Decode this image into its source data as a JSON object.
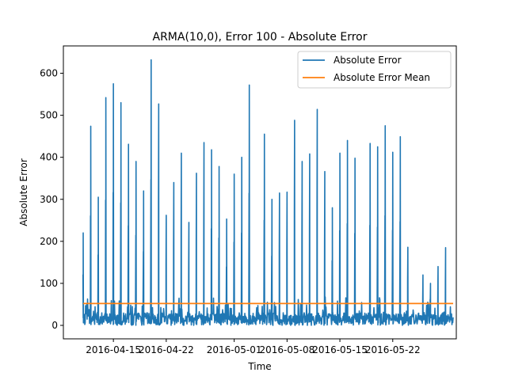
{
  "chart_data": {
    "type": "line",
    "title": "ARMA(10,0), Error 100 - Absolute Error",
    "xlabel": "Time",
    "ylabel": "Absolute Error",
    "x_range": [
      "2016-04-08T09:00",
      "2016-05-30T10:00"
    ],
    "ylim": [
      -32,
      665
    ],
    "x_ticks": [
      {
        "date": "2016-04-15",
        "label": "2016-04-15"
      },
      {
        "date": "2016-04-22",
        "label": "2016-04-22"
      },
      {
        "date": "2016-05-01",
        "label": "2016-05-01"
      },
      {
        "date": "2016-05-08",
        "label": "2016-05-08"
      },
      {
        "date": "2016-05-15",
        "label": "2016-05-15"
      },
      {
        "date": "2016-05-22",
        "label": "2016-05-22"
      }
    ],
    "y_ticks": [
      0,
      100,
      200,
      300,
      400,
      500,
      600
    ],
    "grid": false,
    "legend_position": "top-right",
    "series": [
      {
        "name": "Absolute Error",
        "color": "#1f77b4",
        "x": [
          "2016-04-11",
          "2016-04-12",
          "2016-04-13",
          "2016-04-13",
          "2016-04-14",
          "2016-04-15",
          "2016-04-16",
          "2016-04-16",
          "2016-04-17",
          "2016-04-17",
          "2016-04-18",
          "2016-04-19",
          "2016-04-20",
          "2016-04-21",
          "2016-04-22",
          "2016-04-23",
          "2016-04-24",
          "2016-04-25",
          "2016-04-26",
          "2016-04-27",
          "2016-04-28",
          "2016-04-29",
          "2016-04-30",
          "2016-05-01",
          "2016-05-02",
          "2016-05-03",
          "2016-05-05",
          "2016-05-06",
          "2016-05-07",
          "2016-05-08",
          "2016-05-09",
          "2016-05-10",
          "2016-05-11",
          "2016-05-12",
          "2016-05-13",
          "2016-05-14",
          "2016-05-15",
          "2016-05-16",
          "2016-05-17",
          "2016-05-19",
          "2016-05-20",
          "2016-05-21",
          "2016-05-22",
          "2016-05-23",
          "2016-05-24",
          "2016-05-26",
          "2016-05-27",
          "2016-05-28",
          "2016-05-29"
        ],
        "y": [
          220,
          474,
          305,
          278,
          542,
          575,
          478,
          530,
          431,
          412,
          390,
          320,
          632,
          527,
          262,
          340,
          410,
          245,
          362,
          435,
          418,
          378,
          253,
          360,
          400,
          572,
          455,
          300,
          315,
          317,
          488,
          390,
          408,
          514,
          366,
          280,
          410,
          440,
          398,
          433,
          425,
          475,
          412,
          449,
          186,
          120,
          100,
          140,
          185
        ]
      },
      {
        "name": "Absolute Error Mean",
        "color": "#ff7f0e",
        "x": [
          "2016-04-11",
          "2016-05-30"
        ],
        "y": [
          52,
          52
        ]
      }
    ]
  }
}
